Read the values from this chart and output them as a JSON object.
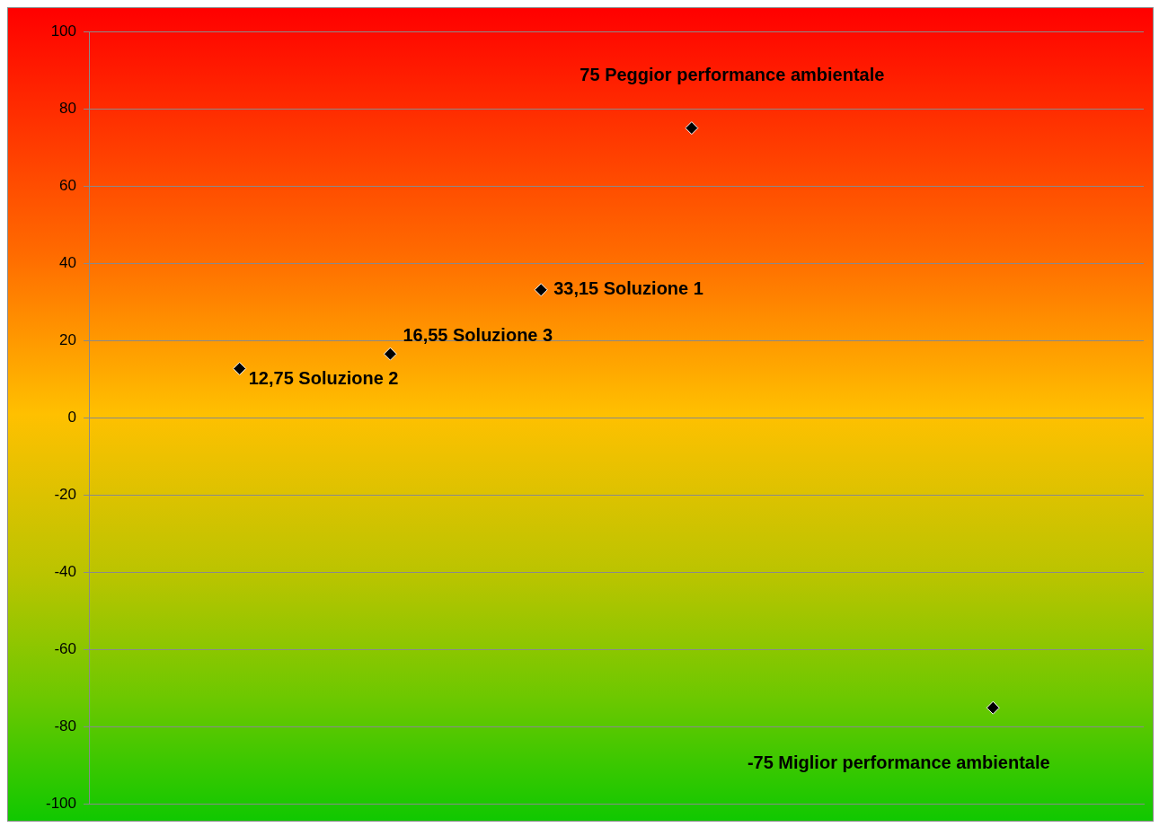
{
  "chart_data": {
    "type": "scatter",
    "categories": [
      null,
      null,
      null,
      null,
      null,
      null,
      null,
      null
    ],
    "values": [
      null,
      12.75,
      16.55,
      33.15,
      75,
      null,
      -75,
      null
    ],
    "value_labels": [
      null,
      "12,75 Soluzione 2",
      "16,55 Soluzione 3",
      "33,15 Soluzione 1",
      "75 Peggior performance ambientale",
      null,
      "-75 Miglior performance ambientale",
      null
    ],
    "color": "#000000",
    "marker": "diamond",
    "ylim": [
      -100,
      100
    ],
    "yticks": [
      -100,
      -80,
      -60,
      -40,
      -20,
      0,
      20,
      40,
      60,
      80,
      100
    ],
    "grid": "y",
    "tick_labels": "y"
  }
}
